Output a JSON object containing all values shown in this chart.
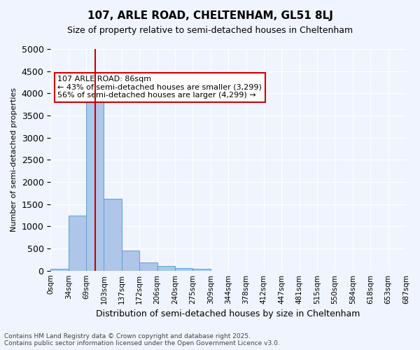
{
  "title": "107, ARLE ROAD, CHELTENHAM, GL51 8LJ",
  "subtitle": "Size of property relative to semi-detached houses in Cheltenham",
  "xlabel": "Distribution of semi-detached houses by size in Cheltenham",
  "ylabel": "Number of semi-detached properties",
  "footer_line1": "Contains HM Land Registry data © Crown copyright and database right 2025.",
  "footer_line2": "Contains public sector information licensed under the Open Government Licence v3.0.",
  "bin_labels": [
    "0sqm",
    "34sqm",
    "69sqm",
    "103sqm",
    "137sqm",
    "172sqm",
    "206sqm",
    "240sqm",
    "275sqm",
    "309sqm",
    "344sqm",
    "378sqm",
    "412sqm",
    "447sqm",
    "481sqm",
    "515sqm",
    "550sqm",
    "584sqm",
    "618sqm",
    "653sqm",
    "687sqm"
  ],
  "bar_values": [
    50,
    1250,
    4050,
    1620,
    460,
    185,
    105,
    65,
    45,
    0,
    0,
    0,
    0,
    0,
    0,
    0,
    0,
    0,
    0,
    0
  ],
  "bar_color": "#aec6e8",
  "bar_edge_color": "#5a9fd4",
  "background_color": "#f0f4ff",
  "grid_color": "#ffffff",
  "red_line_x": 2.5,
  "annotation_text": "107 ARLE ROAD: 86sqm\n← 43% of semi-detached houses are smaller (3,299)\n56% of semi-detached houses are larger (4,299) →",
  "annotation_box_color": "#ffffff",
  "annotation_box_edge": "#cc0000",
  "annotation_text_color": "#000000",
  "red_line_color": "#cc0000",
  "ylim": [
    0,
    5000
  ],
  "yticks": [
    0,
    500,
    1000,
    1500,
    2000,
    2500,
    3000,
    3500,
    4000,
    4500,
    5000
  ]
}
